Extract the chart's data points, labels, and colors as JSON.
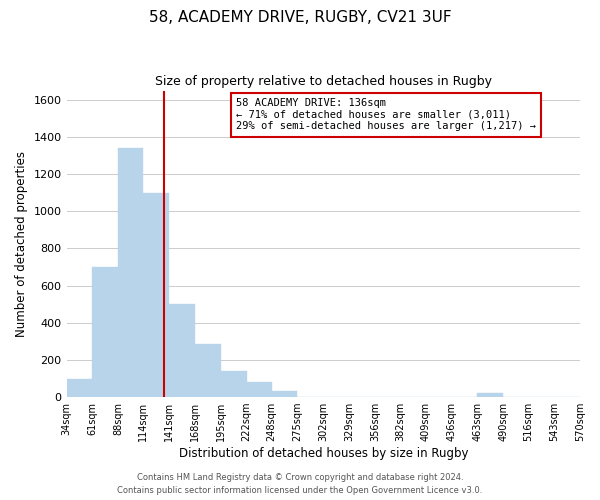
{
  "title": "58, ACADEMY DRIVE, RUGBY, CV21 3UF",
  "subtitle": "Size of property relative to detached houses in Rugby",
  "xlabel": "Distribution of detached houses by size in Rugby",
  "ylabel": "Number of detached properties",
  "bar_edges": [
    34,
    61,
    88,
    114,
    141,
    168,
    195,
    222,
    248,
    275,
    302,
    329,
    356,
    382,
    409,
    436,
    463,
    490,
    516,
    543,
    570
  ],
  "bar_heights": [
    100,
    700,
    1340,
    1100,
    500,
    285,
    140,
    80,
    35,
    0,
    0,
    0,
    0,
    0,
    0,
    0,
    20,
    0,
    0,
    0
  ],
  "bar_color": "#b8d4ea",
  "bar_edgecolor": "#b8d4ea",
  "property_line_x": 136,
  "annotation_title": "58 ACADEMY DRIVE: 136sqm",
  "annotation_line1": "← 71% of detached houses are smaller (3,011)",
  "annotation_line2": "29% of semi-detached houses are larger (1,217) →",
  "annotation_box_color": "#ffffff",
  "annotation_box_edgecolor": "#cc0000",
  "vline_color": "#cc0000",
  "ylim": [
    0,
    1650
  ],
  "yticks": [
    0,
    200,
    400,
    600,
    800,
    1000,
    1200,
    1400,
    1600
  ],
  "tick_labels": [
    "34sqm",
    "61sqm",
    "88sqm",
    "114sqm",
    "141sqm",
    "168sqm",
    "195sqm",
    "222sqm",
    "248sqm",
    "275sqm",
    "302sqm",
    "329sqm",
    "356sqm",
    "382sqm",
    "409sqm",
    "436sqm",
    "463sqm",
    "490sqm",
    "516sqm",
    "543sqm",
    "570sqm"
  ],
  "footer_line1": "Contains HM Land Registry data © Crown copyright and database right 2024.",
  "footer_line2": "Contains public sector information licensed under the Open Government Licence v3.0.",
  "background_color": "#ffffff",
  "grid_color": "#cccccc",
  "figwidth": 6.0,
  "figheight": 5.0,
  "dpi": 100
}
